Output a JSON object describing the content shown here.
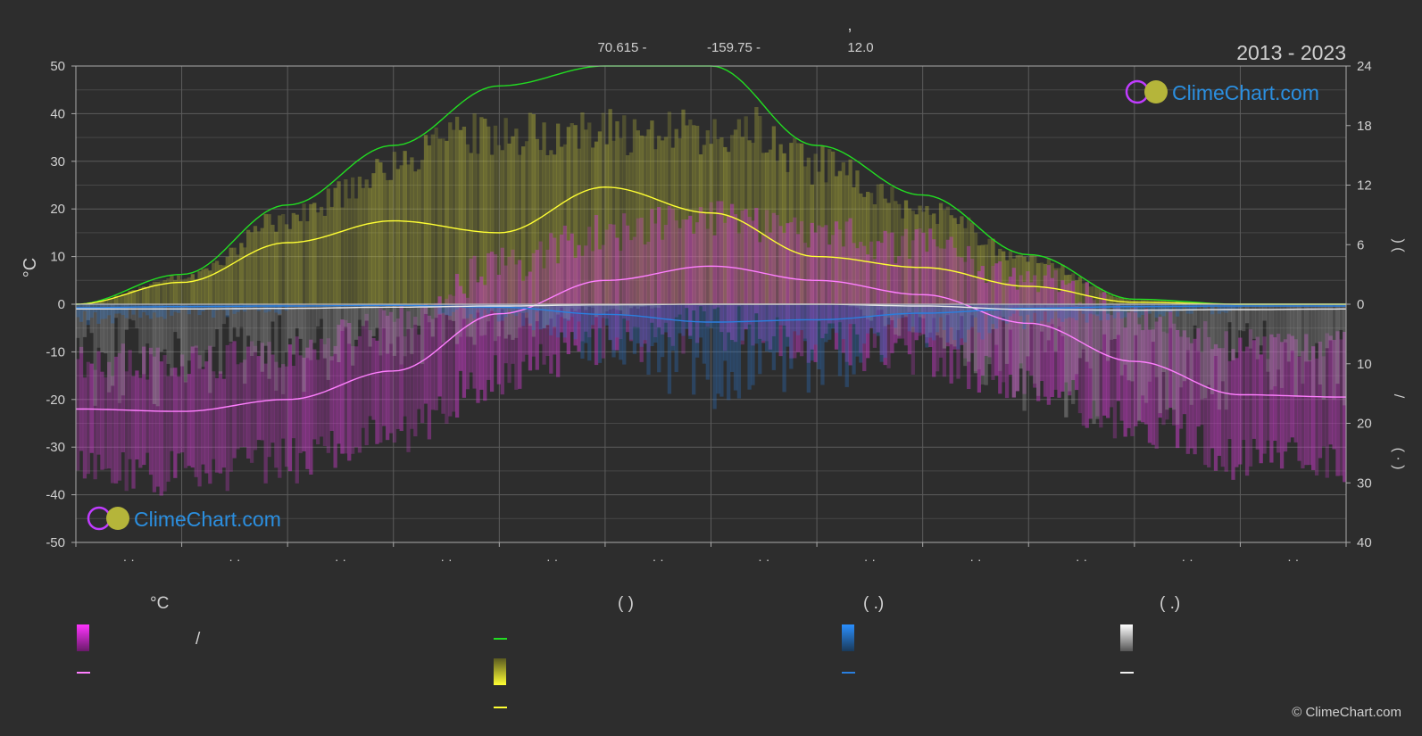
{
  "header": {
    "comma": ",",
    "lat": "70.615 -",
    "lon": "-159.75 -",
    "elev": "12.0",
    "years": "2013 - 2023"
  },
  "logo_text": "ClimeChart.com",
  "copyright": "© ClimeChart.com",
  "axes": {
    "left_unit": "°C",
    "left_ticks": [
      50,
      40,
      30,
      20,
      10,
      0,
      -10,
      -20,
      -30,
      -40,
      -50
    ],
    "right_top_ticks": [
      24,
      18,
      12,
      6,
      0
    ],
    "right_bottom_ticks": [
      10,
      20,
      30,
      40
    ],
    "right_top_label": ")          (",
    "right_mid_label": "/",
    "right_bottom_label": "( · )",
    "month_ticks": [
      "· ·",
      "· ·",
      "· ·",
      "· ·",
      "· ·",
      "· ·",
      "· ·",
      "· ·",
      "· ·",
      "· ·",
      "· ·",
      "· ·"
    ]
  },
  "legend": {
    "col1_header": "°C",
    "col1_slash": "/",
    "col2_header": "(          )",
    "col3_header": "(   .)",
    "col4_header": "(   .)"
  },
  "colors": {
    "background": "#2d2d2d",
    "temp_band": "#d23cd2",
    "temp_line": "#ff7fff",
    "daylight_line": "#22dd22",
    "sunshine_band": "#c8c832",
    "sunshine_line": "#ffff33",
    "rain_band": "#2a7fdf",
    "rain_line": "#2a7fdf",
    "snow_band": "#b4b4b4",
    "snow_line": "#e8e8e8",
    "logo_blue": "#2b8fe0"
  },
  "chart_data": {
    "type": "line",
    "title": "",
    "xlabel": "",
    "ylabel": "°C",
    "ylim": [
      -50,
      50
    ],
    "y2lim": [
      0,
      24
    ],
    "y3lim": [
      0,
      40
    ],
    "x": [
      0,
      1,
      2,
      3,
      4,
      5,
      6,
      7,
      8,
      9,
      10,
      11,
      12
    ],
    "series": [
      {
        "axis": "temperature",
        "values": [
          -22,
          -22.5,
          -20,
          -14,
          -2,
          5,
          8,
          5,
          2,
          -4,
          -12,
          -19,
          -19.5
        ]
      },
      {
        "axis": "hours",
        "values": [
          0,
          3,
          10,
          16,
          22,
          24,
          24,
          16,
          11,
          5,
          0.5,
          0,
          0
        ]
      },
      {
        "axis": "hours",
        "values": [
          0,
          2.2,
          6.2,
          8.4,
          7.2,
          11.8,
          9.2,
          4.8,
          3.7,
          1.8,
          0.2,
          0,
          0
        ]
      },
      {
        "axis": "precipitation",
        "values": [
          0.6,
          0.4,
          0.3,
          0.2,
          0.5,
          1.7,
          3.0,
          2.6,
          1.5,
          0.7,
          0.4,
          0.3,
          0.3
        ]
      },
      {
        "axis": "precipitation",
        "values": [
          0.8,
          0.8,
          0.7,
          0.5,
          0.3,
          0.1,
          0,
          0,
          0.3,
          0.9,
          1.0,
          0.9,
          0.8
        ]
      }
    ]
  }
}
